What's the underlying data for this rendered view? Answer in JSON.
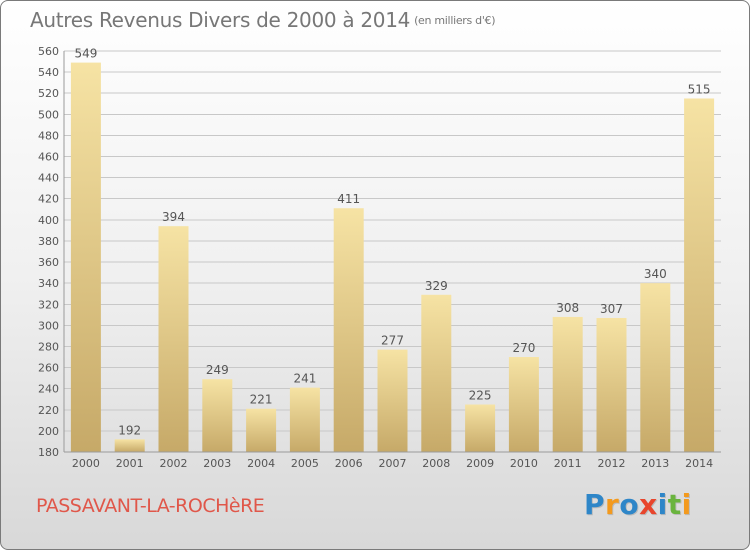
{
  "title": {
    "main": "Autres Revenus Divers de 2000 à 2014",
    "unit": "(en milliers d'€)"
  },
  "commune": "PASSAVANT-LA-ROCHèRE",
  "logo": {
    "letters": [
      {
        "ch": "P",
        "color": "#2e86c8"
      },
      {
        "ch": "r",
        "color": "#f39a1e"
      },
      {
        "ch": "o",
        "color": "#2e86c8"
      },
      {
        "ch": "x",
        "color": "#e8452c"
      },
      {
        "ch": "i",
        "color": "#2e86c8"
      },
      {
        "ch": "t",
        "color": "#6ab43e"
      },
      {
        "ch": "i",
        "color": "#f39a1e"
      }
    ]
  },
  "colors": {
    "bar_top": "#f6e3a4",
    "bar_bottom": "#c6a968",
    "grid": "#c8c8c8",
    "text": "#555555"
  },
  "chart_data": {
    "type": "bar",
    "categories": [
      "2000",
      "2001",
      "2002",
      "2003",
      "2004",
      "2005",
      "2006",
      "2007",
      "2008",
      "2009",
      "2010",
      "2011",
      "2012",
      "2013",
      "2014"
    ],
    "values": [
      549,
      192,
      394,
      249,
      221,
      241,
      411,
      277,
      329,
      225,
      270,
      308,
      307,
      340,
      515
    ],
    "ylim": [
      180,
      560
    ],
    "yticks": [
      180,
      200,
      220,
      240,
      260,
      280,
      300,
      320,
      340,
      360,
      380,
      400,
      420,
      440,
      460,
      480,
      500,
      520,
      540,
      560
    ],
    "grid": true,
    "data_labels": true
  }
}
